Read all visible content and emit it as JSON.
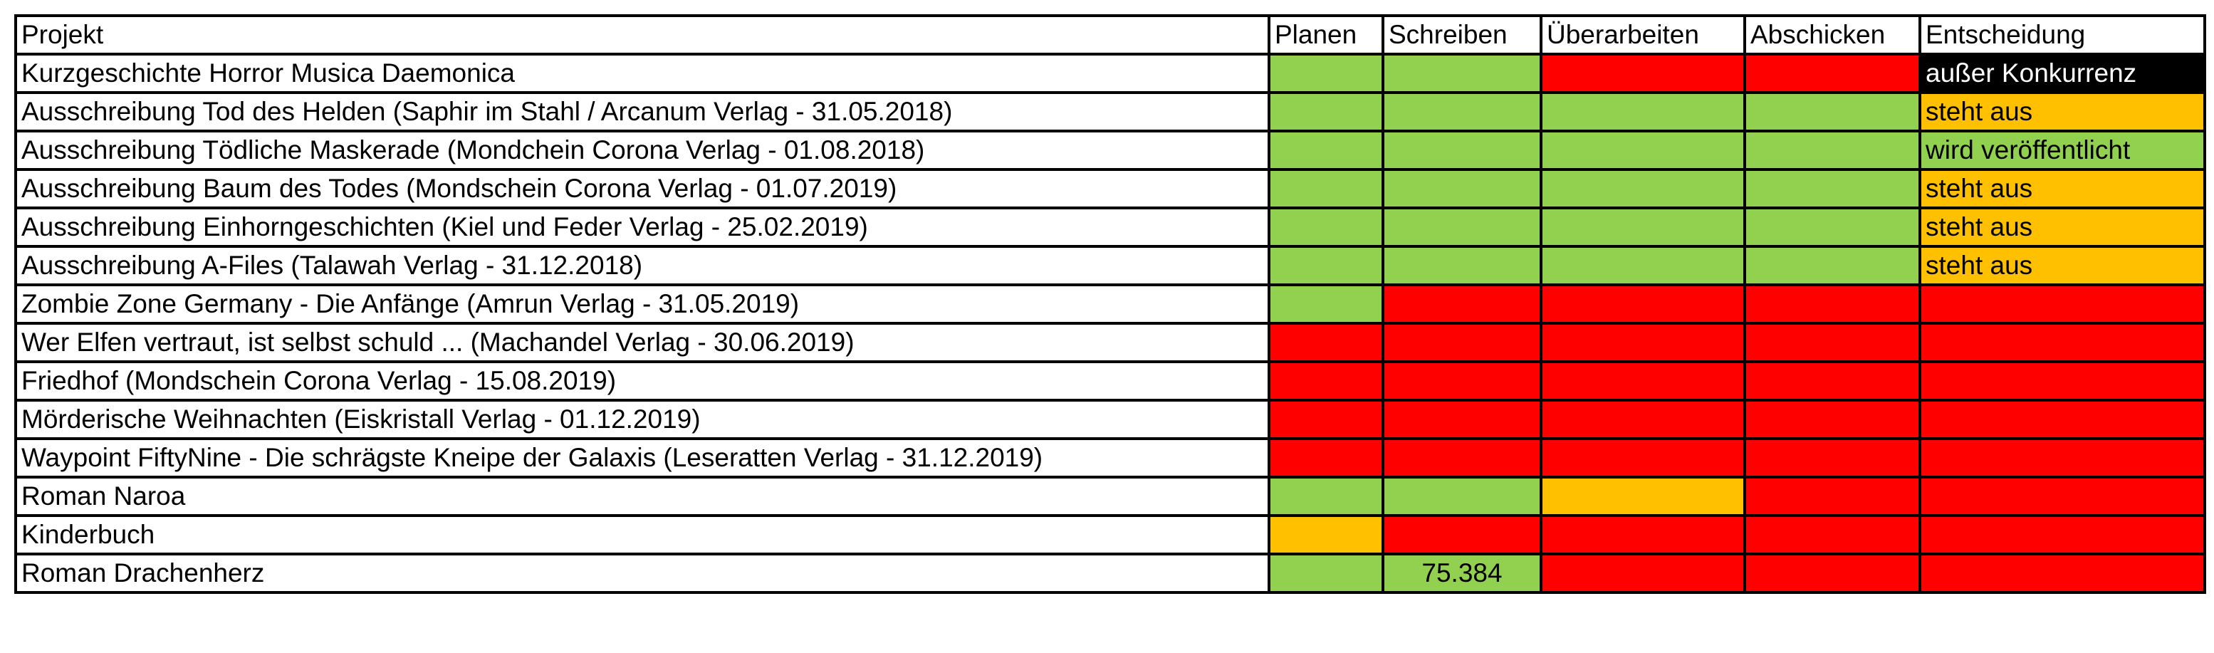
{
  "colors": {
    "green": "#92D050",
    "red": "#FF0000",
    "orange": "#FFC000",
    "black": "#000000",
    "white": "#FFFFFF"
  },
  "headers": [
    "Projekt",
    "Planen",
    "Schreiben",
    "Überarbeiten",
    "Abschicken",
    "Entscheidung"
  ],
  "rows": [
    {
      "project": "Kurzgeschichte Horror Musica Daemonica",
      "cells": [
        {
          "status": "green",
          "text": ""
        },
        {
          "status": "green",
          "text": ""
        },
        {
          "status": "red",
          "text": ""
        },
        {
          "status": "red",
          "text": ""
        },
        {
          "status": "black",
          "text": "außer Konkurrenz"
        }
      ]
    },
    {
      "project": "Ausschreibung Tod des Helden (Saphir im Stahl / Arcanum Verlag - 31.05.2018)",
      "cells": [
        {
          "status": "green",
          "text": ""
        },
        {
          "status": "green",
          "text": ""
        },
        {
          "status": "green",
          "text": ""
        },
        {
          "status": "green",
          "text": ""
        },
        {
          "status": "orange",
          "text": "steht aus"
        }
      ]
    },
    {
      "project": "Ausschreibung Tödliche Maskerade (Mondchein Corona Verlag - 01.08.2018)",
      "cells": [
        {
          "status": "green",
          "text": ""
        },
        {
          "status": "green",
          "text": ""
        },
        {
          "status": "green",
          "text": ""
        },
        {
          "status": "green",
          "text": ""
        },
        {
          "status": "green",
          "text": "wird veröffentlicht"
        }
      ]
    },
    {
      "project": "Ausschreibung Baum des Todes (Mondschein Corona Verlag - 01.07.2019)",
      "cells": [
        {
          "status": "green",
          "text": ""
        },
        {
          "status": "green",
          "text": ""
        },
        {
          "status": "green",
          "text": ""
        },
        {
          "status": "green",
          "text": ""
        },
        {
          "status": "orange",
          "text": "steht aus"
        }
      ]
    },
    {
      "project": "Ausschreibung Einhorngeschichten (Kiel und Feder Verlag - 25.02.2019)",
      "cells": [
        {
          "status": "green",
          "text": ""
        },
        {
          "status": "green",
          "text": ""
        },
        {
          "status": "green",
          "text": ""
        },
        {
          "status": "green",
          "text": ""
        },
        {
          "status": "orange",
          "text": "steht aus"
        }
      ]
    },
    {
      "project": "Ausschreibung A-Files (Talawah Verlag - 31.12.2018)",
      "cells": [
        {
          "status": "green",
          "text": ""
        },
        {
          "status": "green",
          "text": ""
        },
        {
          "status": "green",
          "text": ""
        },
        {
          "status": "green",
          "text": ""
        },
        {
          "status": "orange",
          "text": "steht aus"
        }
      ]
    },
    {
      "project": "Zombie Zone Germany - Die Anfänge (Amrun Verlag - 31.05.2019)",
      "cells": [
        {
          "status": "green",
          "text": ""
        },
        {
          "status": "red",
          "text": ""
        },
        {
          "status": "red",
          "text": ""
        },
        {
          "status": "red",
          "text": ""
        },
        {
          "status": "red",
          "text": ""
        }
      ]
    },
    {
      "project": "Wer Elfen vertraut, ist selbst schuld ... (Machandel Verlag - 30.06.2019)",
      "cells": [
        {
          "status": "red",
          "text": ""
        },
        {
          "status": "red",
          "text": ""
        },
        {
          "status": "red",
          "text": ""
        },
        {
          "status": "red",
          "text": ""
        },
        {
          "status": "red",
          "text": ""
        }
      ]
    },
    {
      "project": "Friedhof (Mondschein Corona Verlag - 15.08.2019)",
      "cells": [
        {
          "status": "red",
          "text": ""
        },
        {
          "status": "red",
          "text": ""
        },
        {
          "status": "red",
          "text": ""
        },
        {
          "status": "red",
          "text": ""
        },
        {
          "status": "red",
          "text": ""
        }
      ]
    },
    {
      "project": "Mörderische Weihnachten (Eiskristall Verlag - 01.12.2019)",
      "cells": [
        {
          "status": "red",
          "text": ""
        },
        {
          "status": "red",
          "text": ""
        },
        {
          "status": "red",
          "text": ""
        },
        {
          "status": "red",
          "text": ""
        },
        {
          "status": "red",
          "text": ""
        }
      ]
    },
    {
      "project": "Waypoint FiftyNine - Die schrägste Kneipe der Galaxis (Leseratten Verlag - 31.12.2019)",
      "cells": [
        {
          "status": "red",
          "text": ""
        },
        {
          "status": "red",
          "text": ""
        },
        {
          "status": "red",
          "text": ""
        },
        {
          "status": "red",
          "text": ""
        },
        {
          "status": "red",
          "text": ""
        }
      ]
    },
    {
      "project": "Roman Naroa",
      "cells": [
        {
          "status": "green",
          "text": ""
        },
        {
          "status": "green",
          "text": ""
        },
        {
          "status": "orange",
          "text": ""
        },
        {
          "status": "red",
          "text": ""
        },
        {
          "status": "red",
          "text": ""
        }
      ]
    },
    {
      "project": "Kinderbuch",
      "cells": [
        {
          "status": "orange",
          "text": ""
        },
        {
          "status": "red",
          "text": ""
        },
        {
          "status": "red",
          "text": ""
        },
        {
          "status": "red",
          "text": ""
        },
        {
          "status": "red",
          "text": ""
        }
      ]
    },
    {
      "project": "Roman Drachenherz",
      "cells": [
        {
          "status": "green",
          "text": ""
        },
        {
          "status": "green",
          "text": "75.384"
        },
        {
          "status": "red",
          "text": ""
        },
        {
          "status": "red",
          "text": ""
        },
        {
          "status": "red",
          "text": ""
        }
      ]
    }
  ]
}
